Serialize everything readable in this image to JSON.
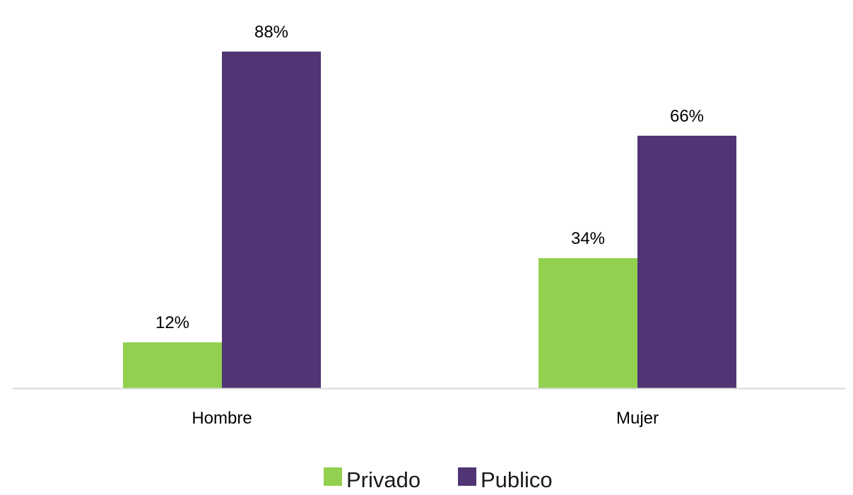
{
  "chart_data": {
    "type": "bar",
    "categories": [
      "Hombre",
      "Mujer"
    ],
    "series": [
      {
        "name": "Privado",
        "values": [
          12,
          34
        ],
        "labels": [
          "12%",
          "34%"
        ],
        "color": "#92d050"
      },
      {
        "name": "Publico",
        "values": [
          88,
          66
        ],
        "labels": [
          "88%",
          "66%"
        ],
        "color": "#513474"
      }
    ],
    "unit": "%",
    "ylim": [
      0,
      100
    ],
    "grid": false,
    "legend": "bottom-center",
    "axis_color": "#d9d9d9"
  }
}
